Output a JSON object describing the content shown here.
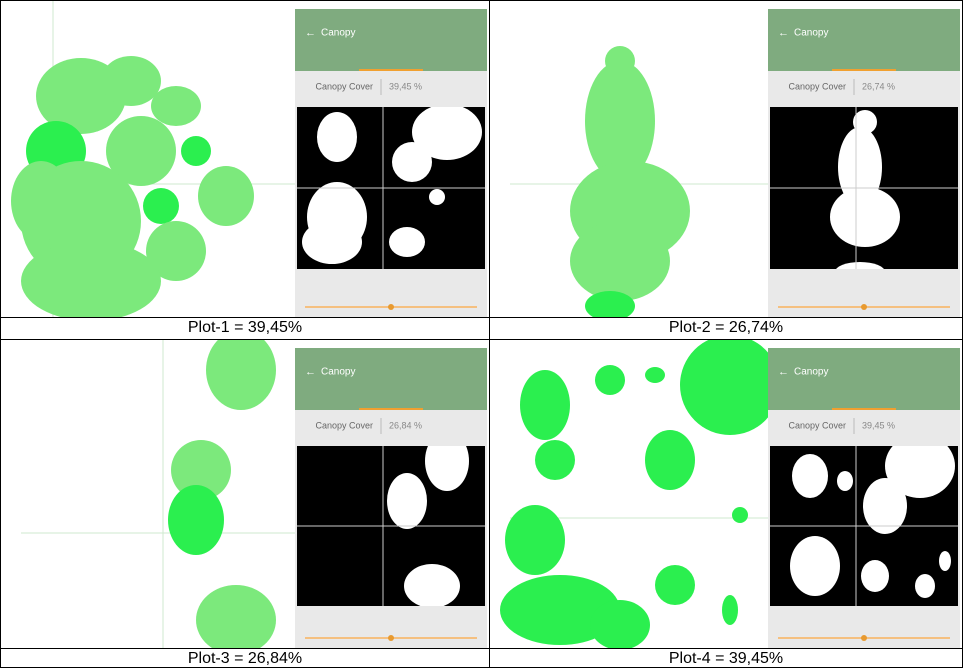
{
  "panels": [
    {
      "caption": "Plot-1 = 39,45%",
      "app_title": "Canopy",
      "cover_label": "Canopy Cover",
      "cover_value": "39,45 %"
    },
    {
      "caption": "Plot-2 = 26,74%",
      "app_title": "Canopy",
      "cover_label": "Canopy Cover",
      "cover_value": "26,74 %"
    },
    {
      "caption": "Plot-3 = 26,84%",
      "app_title": "Canopy",
      "cover_label": "Canopy Cover",
      "cover_value": "26,84 %"
    },
    {
      "caption": "Plot-4 = 39,45%",
      "app_title": "Canopy",
      "cover_label": "Canopy Cover",
      "cover_value": "39,45 %"
    }
  ]
}
